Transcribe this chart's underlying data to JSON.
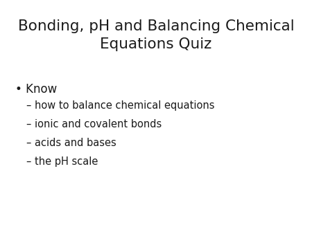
{
  "background_color": "#ffffff",
  "title_line1": "Bonding, pH and Balancing Chemical",
  "title_line2": "Equations Quiz",
  "title_fontsize": 15.5,
  "title_color": "#1a1a1a",
  "title_font_weight": "normal",
  "bullet_text": "Know",
  "bullet_fontsize": 12,
  "bullet_color": "#1a1a1a",
  "bullet_marker": "•",
  "sub_items": [
    "– how to balance chemical equations",
    "– ionic and covalent bonds",
    "– acids and bases",
    "– the pH scale"
  ],
  "sub_fontsize": 10.5,
  "sub_color": "#1a1a1a"
}
